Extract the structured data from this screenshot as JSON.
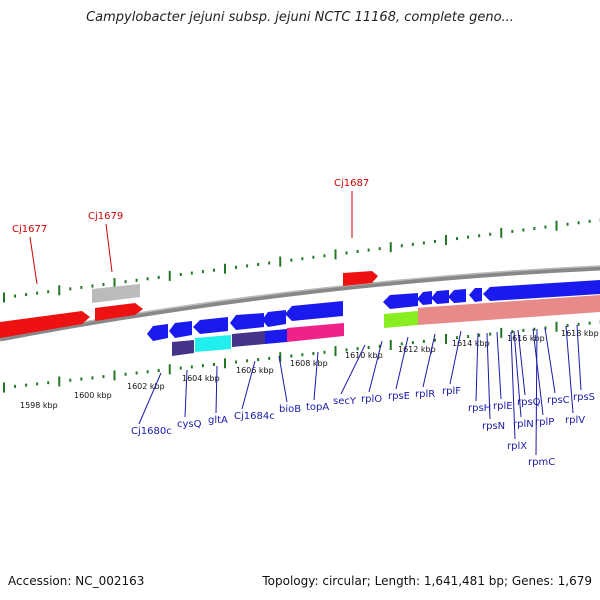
{
  "title": "Campylobacter jejuni subsp. jejuni NCTC 11168, complete geno...",
  "footer": {
    "accession": "Accession: NC_002163",
    "summary": "Topology: circular; Length: 1,641,481 bp; Genes: 1,679"
  },
  "colors": {
    "forward": "#ee1111",
    "reverse_blue": "#1a1aee",
    "rrna_pink": "#e88a8a",
    "green": "#88ee22",
    "cyan": "#22eeee",
    "purple": "#443388",
    "magenta": "#ee2288",
    "gray": "#bbbbbb",
    "dots": "#227722"
  },
  "scale_labels": [
    "1598 kbp",
    "1600 kbp",
    "1602 kbp",
    "1604 kbp",
    "1606 kbp",
    "1608 kbp",
    "1610 kbp",
    "1612 kbp",
    "1614 kbp",
    "1616 kbp",
    "1618 kbp"
  ],
  "top_genes": [
    {
      "label": "Cj1677"
    },
    {
      "label": "Cj1679"
    },
    {
      "label": "Cj1687"
    }
  ],
  "bottom_genes": [
    {
      "label": "Cj1680c"
    },
    {
      "label": "cysQ"
    },
    {
      "label": "gltA"
    },
    {
      "label": "Cj1684c"
    },
    {
      "label": "bioB"
    },
    {
      "label": "topA"
    },
    {
      "label": "secY"
    },
    {
      "label": "rplO"
    },
    {
      "label": "rpsE"
    },
    {
      "label": "rplR"
    },
    {
      "label": "rplF"
    },
    {
      "label": "rpsH"
    },
    {
      "label": "rpsN"
    },
    {
      "label": "rplE"
    },
    {
      "label": "rplX"
    },
    {
      "label": "rplN"
    },
    {
      "label": "rpsQ"
    },
    {
      "label": "rplP"
    },
    {
      "label": "rpmC"
    },
    {
      "label": "rpsC"
    },
    {
      "label": "rplV"
    },
    {
      "label": "rpsS"
    }
  ]
}
